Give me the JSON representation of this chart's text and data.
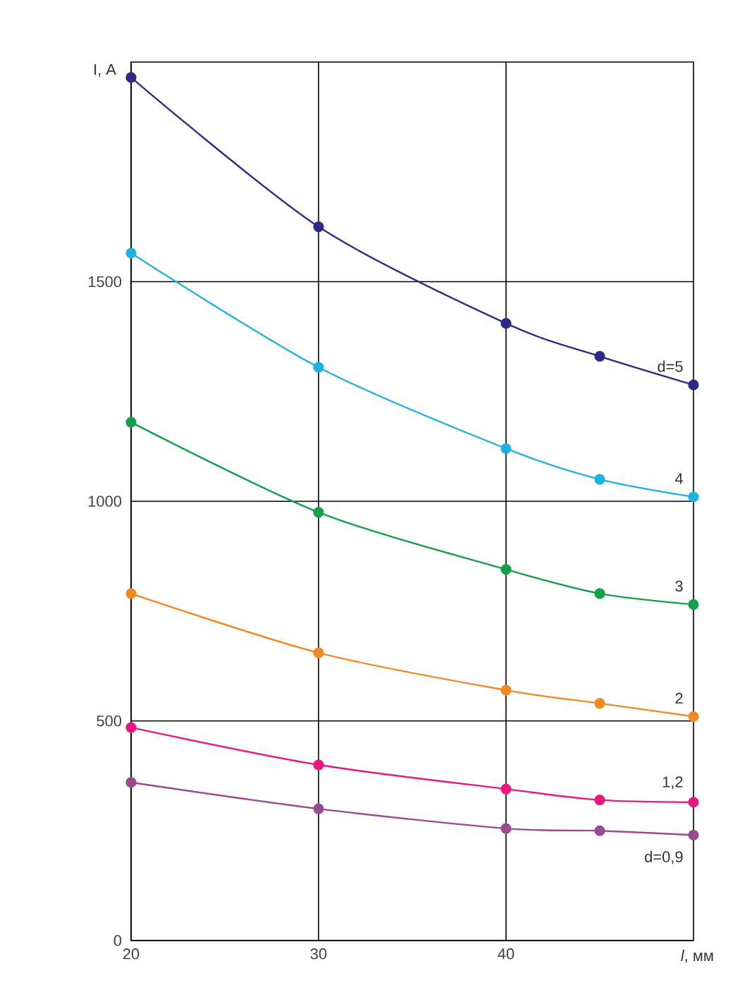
{
  "chart_data": {
    "type": "line",
    "xlabel": "*l*, мм",
    "ylabel": "I, A",
    "xlim": [
      20,
      50
    ],
    "xticks": [
      20,
      30,
      40
    ],
    "ylim": [
      0,
      2000
    ],
    "yticks": [
      0,
      500,
      1000,
      1500
    ],
    "grid": true,
    "marker": "circle",
    "x": [
      20,
      30,
      40,
      45,
      50
    ],
    "series": [
      {
        "name": "d=5",
        "color": "#2e2a87",
        "values": [
          1965,
          1625,
          1405,
          1330,
          1265
        ]
      },
      {
        "name": "4",
        "color": "#1fb0e6",
        "values": [
          1565,
          1305,
          1120,
          1050,
          1010
        ]
      },
      {
        "name": "3",
        "color": "#13a04a",
        "values": [
          1180,
          975,
          845,
          790,
          765
        ]
      },
      {
        "name": "2",
        "color": "#f08a24",
        "values": [
          790,
          655,
          570,
          540,
          510
        ]
      },
      {
        "name": "1,2",
        "color": "#e6197f",
        "values": [
          485,
          400,
          345,
          320,
          315
        ]
      },
      {
        "name": "d=0,9",
        "color": "#9b4a8f",
        "values": [
          360,
          300,
          255,
          250,
          240
        ]
      }
    ]
  }
}
